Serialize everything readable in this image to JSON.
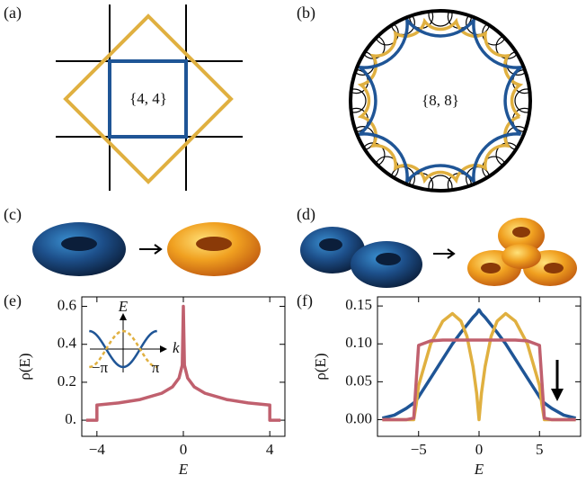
{
  "panels": {
    "a": {
      "label": "(a)",
      "symbol": "{4, 4}"
    },
    "b": {
      "label": "(b)",
      "symbol": "{8, 8}"
    },
    "c": {
      "label": "(c)"
    },
    "d": {
      "label": "(d)"
    }
  },
  "chart_data": [
    {
      "type": "line",
      "panel_label": "(e)",
      "x_label": "E",
      "y_label": "ρ(E)",
      "xlim": [
        -4.7,
        4.7
      ],
      "ylim": [
        -0.085,
        0.65
      ],
      "xticks": [
        {
          "value": -4,
          "label": "−4"
        },
        0,
        4
      ],
      "yticks": [
        {
          "value": 0,
          "label": "0."
        },
        0.2,
        0.4,
        0.6
      ],
      "x": [
        -4.5,
        -4,
        -4,
        -3,
        -2,
        -1,
        -0.5,
        -0.2,
        -0.05,
        0,
        0.05,
        0.2,
        0.5,
        1,
        2,
        3,
        4,
        4,
        4.5
      ],
      "series": [
        {
          "color": "#c0606e",
          "values": [
            0,
            0,
            0.08,
            0.091,
            0.109,
            0.142,
            0.176,
            0.222,
            0.29,
            0.6,
            0.29,
            0.222,
            0.176,
            0.142,
            0.109,
            0.091,
            0.08,
            0,
            0
          ]
        }
      ],
      "inset": {
        "x_label": "k",
        "y_label": "E",
        "xticks": [
          "−π",
          "π"
        ]
      }
    },
    {
      "type": "line",
      "panel_label": "(f)",
      "x_label": "E",
      "y_label": "ρ(E)",
      "xlim": [
        -8.4,
        8.4
      ],
      "ylim": [
        -0.022,
        0.162
      ],
      "xticks": [
        {
          "value": -5,
          "label": "−5"
        },
        0,
        5
      ],
      "yticks": [
        {
          "value": 0,
          "label": "0.00"
        },
        0.05,
        {
          "value": 0.1,
          "label": "0.10"
        },
        0.15
      ],
      "x": [
        -8,
        -7,
        -6,
        -5.4,
        -5.2,
        -5,
        -4,
        -3,
        -2.2,
        -1.5,
        -1,
        -0.5,
        -0.2,
        0,
        0.2,
        0.5,
        1,
        1.5,
        2.2,
        3,
        4,
        5,
        5.2,
        5.4,
        6,
        7,
        8
      ],
      "series": [
        {
          "color": "#1f5596",
          "values": [
            0.002,
            0.006,
            0.015,
            0.022,
            0.025,
            0.03,
            0.055,
            0.08,
            0.1,
            0.115,
            0.125,
            0.135,
            0.14,
            0.145,
            0.14,
            0.135,
            0.125,
            0.115,
            0.1,
            0.08,
            0.055,
            0.03,
            0.025,
            0.022,
            0.015,
            0.006,
            0.002
          ]
        },
        {
          "color": "#e0b040",
          "values": [
            0,
            0,
            0,
            0,
            0.02,
            0.045,
            0.1,
            0.13,
            0.14,
            0.13,
            0.11,
            0.07,
            0.035,
            0,
            0.035,
            0.07,
            0.11,
            0.13,
            0.14,
            0.13,
            0.1,
            0.045,
            0.02,
            0,
            0,
            0,
            0
          ]
        },
        {
          "color": "#c0606e",
          "values": [
            0,
            0,
            0,
            0.002,
            0.05,
            0.098,
            0.104,
            0.105,
            0.105,
            0.105,
            0.105,
            0.105,
            0.105,
            0.105,
            0.105,
            0.105,
            0.105,
            0.105,
            0.105,
            0.105,
            0.104,
            0.098,
            0.05,
            0.002,
            0,
            0,
            0
          ]
        }
      ]
    }
  ]
}
